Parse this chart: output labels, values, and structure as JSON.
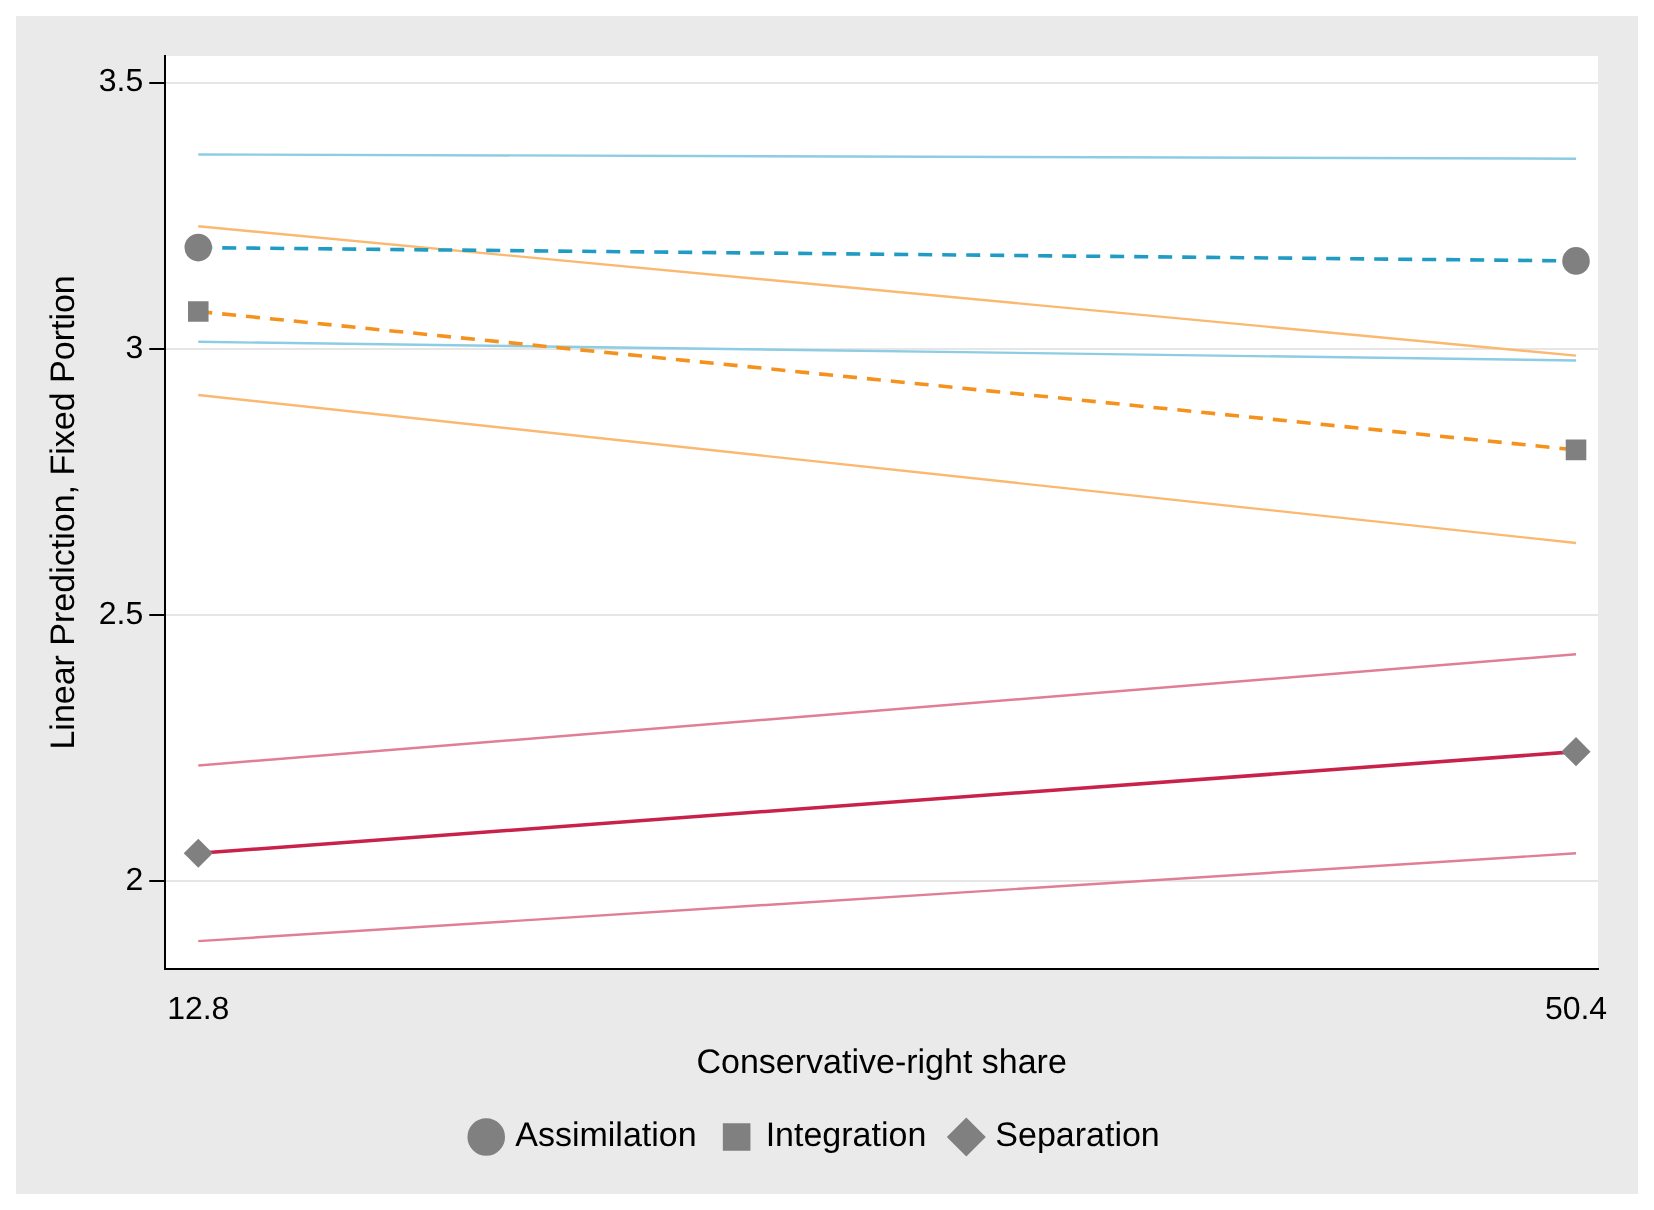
{
  "chart_data": {
    "type": "line",
    "xlabel": "Conservative-right share",
    "ylabel": "Linear Prediction, Fixed Portion",
    "x": [
      12.8,
      50.4
    ],
    "xlim": [
      11.9,
      51
    ],
    "xticks": [
      12.8,
      50.4
    ],
    "ylim": [
      1.835,
      3.55
    ],
    "yticks": [
      2,
      2.5,
      3,
      3.5
    ],
    "grid": "y",
    "legend": "bottom",
    "series": [
      {
        "name": "Assimilation",
        "color": "#1f9bc4",
        "values": [
          3.19,
          3.165
        ],
        "marker": "circle",
        "line_style": "dashed"
      },
      {
        "name": "Integration",
        "color": "#f5921e",
        "values": [
          3.07,
          2.81
        ],
        "marker": "square",
        "line_style": "dashed"
      },
      {
        "name": "Separation",
        "color": "#c8224a",
        "values": [
          2.052,
          2.243
        ],
        "marker": "diamond",
        "line_style": "solid"
      },
      {
        "color": "#8ccde3",
        "values": [
          3.365,
          3.357
        ],
        "marker": "none",
        "line_style": "solid"
      },
      {
        "color": "#8ccde3",
        "values": [
          3.013,
          2.978
        ],
        "marker": "none",
        "line_style": "solid"
      },
      {
        "color": "#fbb870",
        "values": [
          3.23,
          2.987
        ],
        "marker": "none",
        "line_style": "solid"
      },
      {
        "color": "#fbb870",
        "values": [
          2.913,
          2.635
        ],
        "marker": "none",
        "line_style": "solid"
      },
      {
        "color": "#e07e96",
        "values": [
          2.217,
          2.426
        ],
        "marker": "none",
        "line_style": "solid"
      },
      {
        "color": "#e07e96",
        "values": [
          1.887,
          2.052
        ],
        "marker": "none",
        "line_style": "solid"
      }
    ]
  }
}
